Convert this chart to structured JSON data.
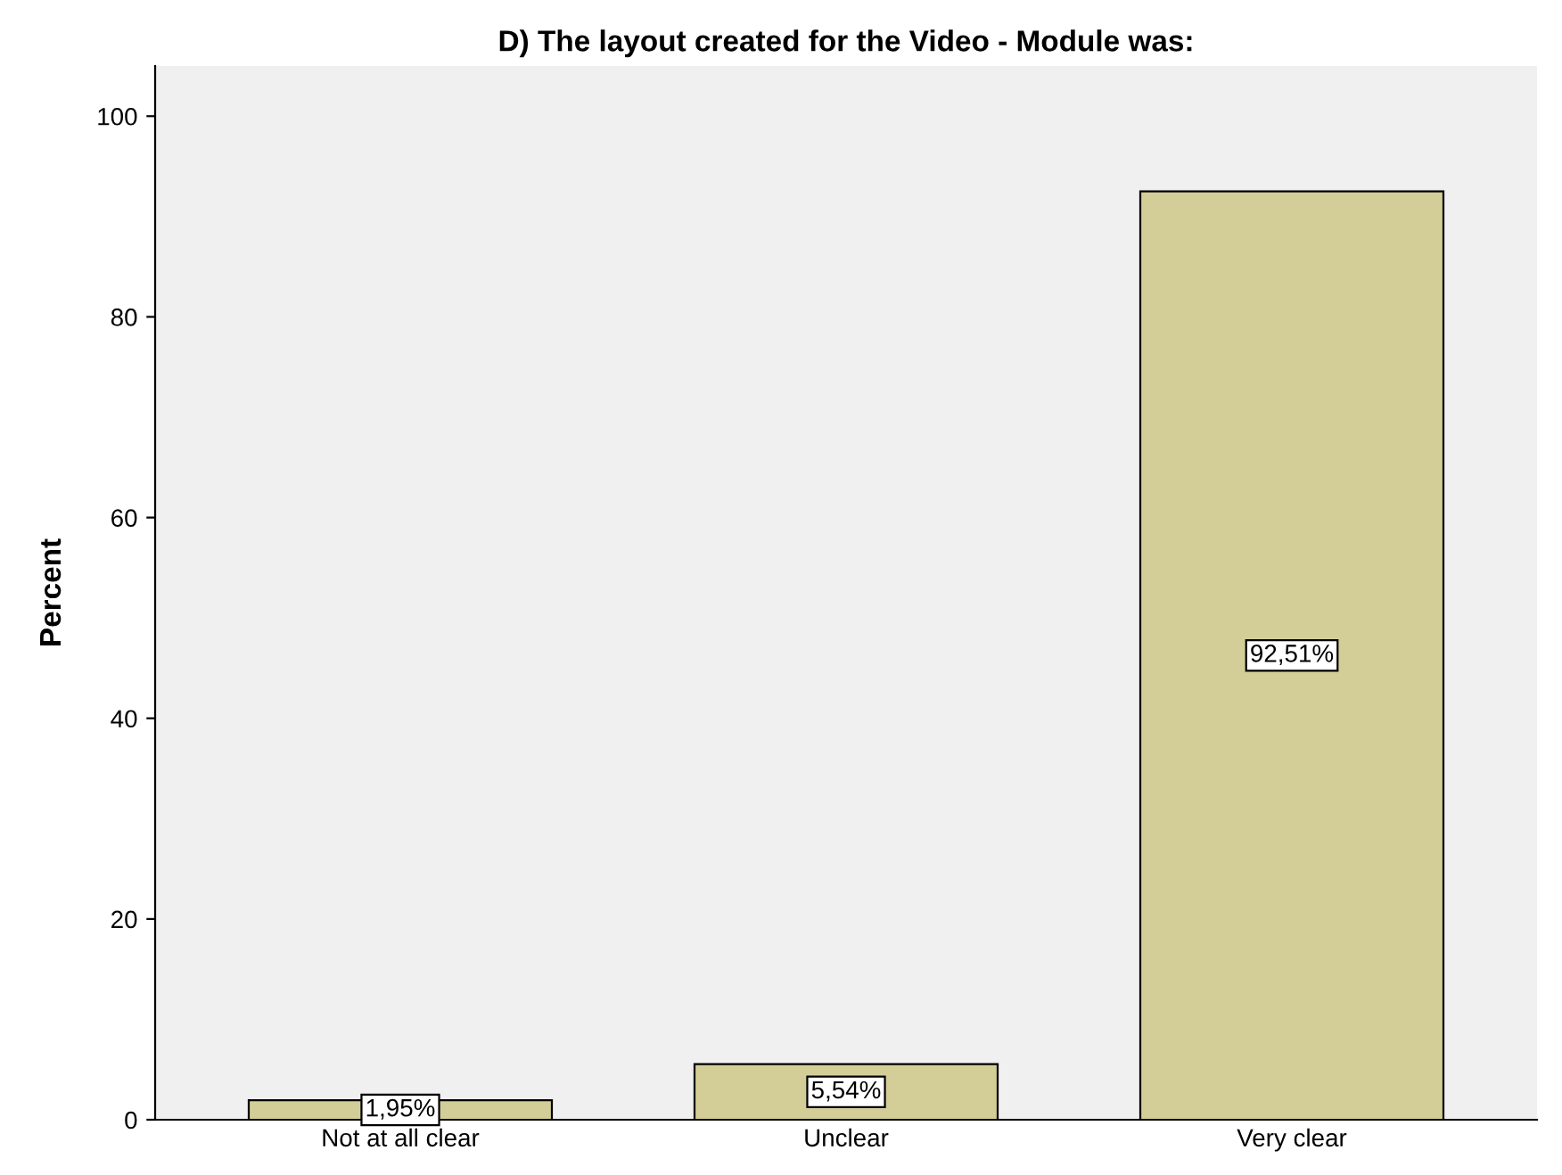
{
  "chart_data": {
    "type": "bar",
    "title": "D) The layout created for the Video - Module was:",
    "ylabel": "Percent",
    "categories": [
      "Not at all clear",
      "Unclear",
      "Very clear"
    ],
    "values": [
      1.95,
      5.54,
      92.51
    ],
    "value_labels": [
      "1,95%",
      "5,54%",
      "92,51%"
    ],
    "color": "#d3ce98",
    "ylim": [
      0,
      105
    ],
    "yticks": [
      0,
      20,
      40,
      60,
      80,
      100
    ],
    "grid": false,
    "legend": false
  }
}
